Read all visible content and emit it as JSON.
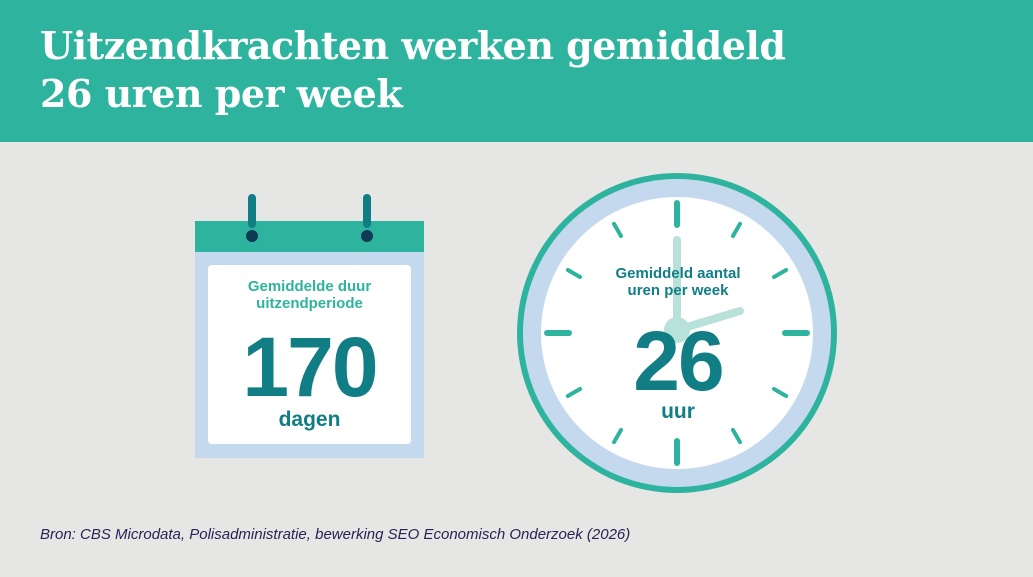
{
  "header": {
    "title_line1": "Uitzendkrachten werken gemiddeld",
    "title_line2": "26 uren per week"
  },
  "calendar": {
    "label_line1": "Gemiddelde duur",
    "label_line2": "uitzendperiode",
    "value": "170",
    "unit": "dagen"
  },
  "clock": {
    "label_line1": "Gemiddeld aantal",
    "label_line2": "uren per week",
    "value": "26",
    "unit": "uur"
  },
  "source": "Bron: CBS Microdata, Polisadministratie, bewerking SEO Economisch Onderzoek (2026)",
  "colors": {
    "teal": "#2eb39e",
    "dark_teal": "#117e85",
    "light_blue": "#c5d9ee",
    "background": "#e6e6e4",
    "navy": "#2b2257"
  },
  "icons": [
    "calendar-icon",
    "clock-icon"
  ]
}
